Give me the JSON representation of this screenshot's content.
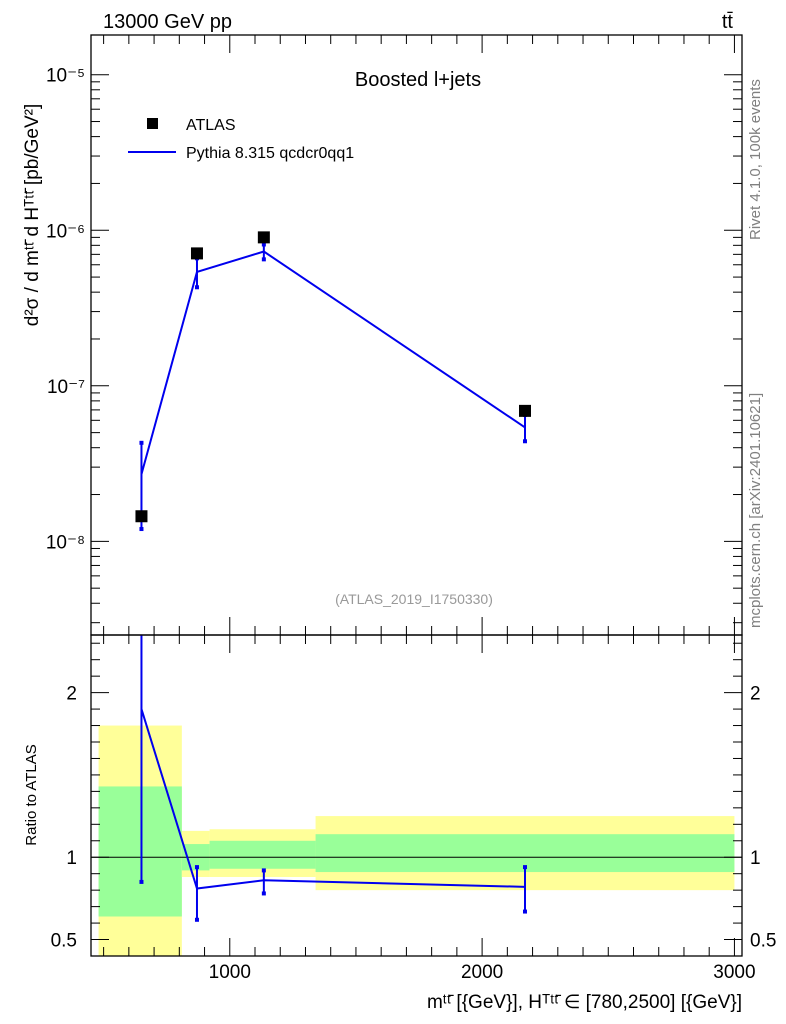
{
  "header": {
    "energy_label": "13000 GeV pp",
    "process_label": "tt̄"
  },
  "side_labels": {
    "rivet": "Rivet 4.1.0,  100k events",
    "source": "mcplots.cern.ch [arXiv:2401.10621]"
  },
  "chart_data": [
    {
      "type": "scatter",
      "panel": "main",
      "title": "Boosted l+jets",
      "analysis_label": "(ATLAS_2019_I1750330)",
      "ylabel": "d²σ / d mᵗᵗ̄ d Hᵀᵗᵗ̄ [pb/GeV²]",
      "yscale": "log",
      "xlim": [
        450,
        3030
      ],
      "ylim": [
        2.5e-09,
        1.8e-05
      ],
      "ytick_labels": [
        "10⁻⁸",
        "10⁻⁷",
        "10⁻⁶",
        "10⁻⁵"
      ],
      "ytick_values": [
        1e-08,
        1e-07,
        1e-06,
        1e-05
      ],
      "legend_position": "top-left",
      "series": [
        {
          "name": "ATLAS",
          "style": "marker-square",
          "color": "#000000",
          "x": [
            650,
            870,
            1135,
            2170
          ],
          "y": [
            1.45e-08,
            7.1e-07,
            9e-07,
            6.9e-08
          ]
        },
        {
          "name": "Pythia 8.315 qcdcr0qq1",
          "style": "line-with-errorbars",
          "color": "#0000ee",
          "x": [
            650,
            870,
            1135,
            2170
          ],
          "y": [
            2.7e-08,
            5.4e-07,
            7.3e-07,
            5.4e-08
          ],
          "err_low": [
            1.2e-08,
            4.3e-07,
            6.5e-07,
            4.4e-08
          ],
          "err_high": [
            4.3e-08,
            6.6e-07,
            8.1e-07,
            6.5e-08
          ]
        }
      ]
    },
    {
      "type": "line",
      "panel": "ratio",
      "ylabel": "Ratio to ATLAS",
      "xlabel": "mᵗᵗ̄ [{GeV}], Hᵀᵗᵗ̄ ∈ [780,2500] [{GeV}]",
      "xlim": [
        450,
        3030
      ],
      "ylim": [
        0.4,
        2.35
      ],
      "xtick_labels": [
        "1000",
        "2000",
        "3000"
      ],
      "xtick_values": [
        1000,
        2000,
        3000
      ],
      "ytick_labels": [
        "0.5",
        "1",
        "2"
      ],
      "ytick_values": [
        0.5,
        1,
        2
      ],
      "reference_line": 1,
      "bands": [
        {
          "x0": 480,
          "x1": 810,
          "yellow": [
            0.3,
            1.8
          ],
          "green": [
            0.64,
            1.43
          ]
        },
        {
          "x0": 810,
          "x1": 920,
          "yellow": [
            0.88,
            1.16
          ],
          "green": [
            0.92,
            1.08
          ]
        },
        {
          "x0": 920,
          "x1": 1340,
          "yellow": [
            0.88,
            1.17
          ],
          "green": [
            0.93,
            1.1
          ]
        },
        {
          "x0": 1340,
          "x1": 3000,
          "yellow": [
            0.8,
            1.25
          ],
          "green": [
            0.91,
            1.14
          ]
        }
      ],
      "series": [
        {
          "name": "Pythia 8.315 qcdcr0qq1 / ATLAS",
          "color": "#0000ee",
          "x": [
            650,
            870,
            1135,
            2170
          ],
          "y": [
            1.9,
            0.81,
            0.86,
            0.82
          ],
          "err_low": [
            0.85,
            0.62,
            0.78,
            0.67
          ],
          "err_high": [
            2.35,
            0.94,
            0.92,
            0.94
          ]
        }
      ]
    }
  ]
}
